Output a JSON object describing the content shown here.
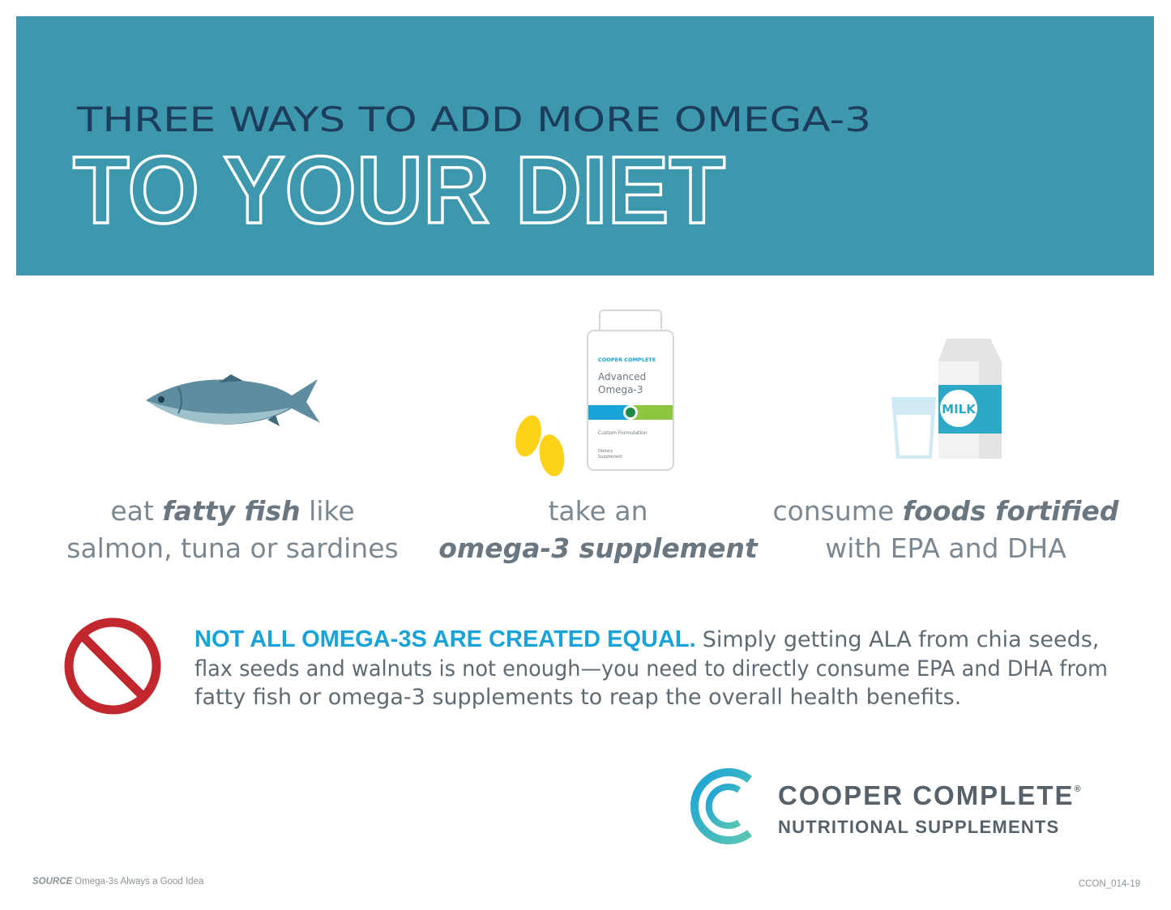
{
  "header": {
    "subtitle": "THREE WAYS TO ADD MORE OMEGA-3",
    "title": "TO YOUR DIET"
  },
  "ways": [
    {
      "line1": [
        "eat ",
        "fatty fish",
        " like"
      ],
      "line2": [
        "salmon, tuna or sardines"
      ]
    },
    {
      "line1": [
        "take an"
      ],
      "line2": [
        "omega-3 supplement"
      ],
      "bottle": {
        "brand": "COOPER COMPLETE",
        "product": [
          "Advanced",
          "Omega-3"
        ],
        "formula": "Custom Formulation",
        "kind": [
          "Dietary",
          "Supplement"
        ]
      }
    },
    {
      "line1": [
        "consume ",
        "foods fortified"
      ],
      "line2": [
        "with EPA and DHA"
      ],
      "carton": "MILK"
    }
  ],
  "notice": {
    "lead": "NOT ALL OMEGA-3S ARE CREATED EQUAL.",
    "body": [
      "Simply getting ALA from chia seeds,",
      "flax seeds and walnuts is not enough—you need to directly consume EPA and DHA from",
      "fatty fish or omega-3 supplements to reap the overall health benefits."
    ]
  },
  "logo": {
    "name": "COOPER COMPLETE",
    "mark": "®",
    "tagline": "NUTRITIONAL SUPPLEMENTS"
  },
  "footer": {
    "source_label": "SOURCE",
    "source": "Omega-3s Always a Good Idea",
    "code": "CCON_014-19"
  }
}
